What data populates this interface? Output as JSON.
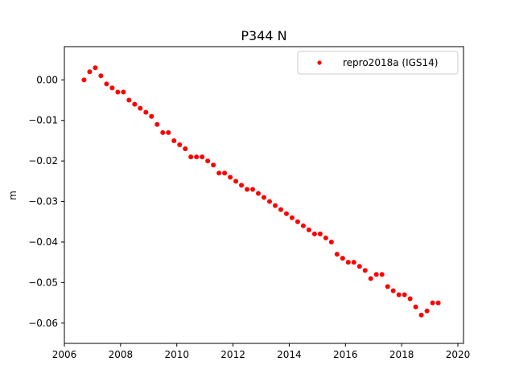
{
  "chart_data": {
    "type": "scatter",
    "title": "P344 N",
    "xlabel": "",
    "ylabel": "m",
    "xlim": [
      2006.0,
      2020.2
    ],
    "ylim": [
      -0.065,
      0.0082
    ],
    "x_ticks": [
      2006,
      2008,
      2010,
      2012,
      2014,
      2016,
      2018,
      2020
    ],
    "x_tick_labels": [
      "2006",
      "2008",
      "2010",
      "2012",
      "2014",
      "2016",
      "2018",
      "2020"
    ],
    "y_ticks": [
      0.0,
      -0.01,
      -0.02,
      -0.03,
      -0.04,
      -0.05,
      -0.06
    ],
    "y_tick_labels": [
      "0.00",
      "−0.01",
      "−0.02",
      "−0.03",
      "−0.04",
      "−0.05",
      "−0.06"
    ],
    "grid": false,
    "legend_position": "top-right",
    "series": [
      {
        "name": "repro2018a (IGS14)",
        "color": "#ff0000",
        "marker": "circle",
        "x": [
          2006.7,
          2006.9,
          2007.1,
          2007.3,
          2007.5,
          2007.7,
          2007.9,
          2008.1,
          2008.3,
          2008.5,
          2008.7,
          2008.9,
          2009.1,
          2009.3,
          2009.5,
          2009.7,
          2009.9,
          2010.1,
          2010.3,
          2010.5,
          2010.7,
          2010.9,
          2011.1,
          2011.3,
          2011.5,
          2011.7,
          2011.9,
          2012.1,
          2012.3,
          2012.5,
          2012.7,
          2012.9,
          2013.1,
          2013.3,
          2013.5,
          2013.7,
          2013.9,
          2014.1,
          2014.3,
          2014.5,
          2014.7,
          2014.9,
          2015.1,
          2015.3,
          2015.5,
          2015.7,
          2015.9,
          2016.1,
          2016.3,
          2016.5,
          2016.7,
          2016.9,
          2017.1,
          2017.3,
          2017.5,
          2017.7,
          2017.9,
          2018.1,
          2018.3,
          2018.5,
          2018.7,
          2018.9,
          2019.1,
          2019.3
        ],
        "y": [
          0.0,
          0.002,
          0.003,
          0.001,
          -0.001,
          -0.002,
          -0.003,
          -0.003,
          -0.005,
          -0.006,
          -0.007,
          -0.008,
          -0.009,
          -0.011,
          -0.013,
          -0.013,
          -0.015,
          -0.016,
          -0.017,
          -0.019,
          -0.019,
          -0.019,
          -0.02,
          -0.021,
          -0.023,
          -0.023,
          -0.024,
          -0.025,
          -0.026,
          -0.027,
          -0.027,
          -0.028,
          -0.029,
          -0.03,
          -0.031,
          -0.032,
          -0.033,
          -0.034,
          -0.035,
          -0.036,
          -0.037,
          -0.038,
          -0.038,
          -0.039,
          -0.04,
          -0.043,
          -0.044,
          -0.045,
          -0.045,
          -0.046,
          -0.047,
          -0.049,
          -0.048,
          -0.048,
          -0.051,
          -0.052,
          -0.053,
          -0.053,
          -0.054,
          -0.056,
          -0.058,
          -0.057,
          -0.055,
          -0.055
        ]
      }
    ]
  }
}
